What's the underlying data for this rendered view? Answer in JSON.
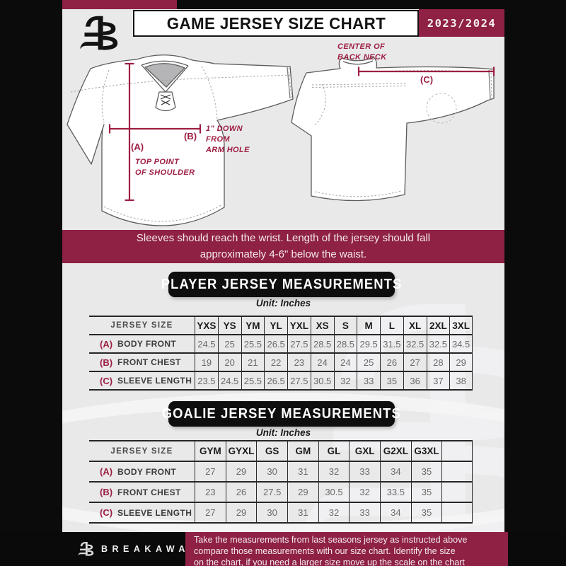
{
  "header": {
    "title": "GAME JERSEY SIZE CHART",
    "season": "2023/2024"
  },
  "diagram": {
    "front": {
      "a_key": "(A)",
      "a_note": "TOP POINT\nOF SHOULDER",
      "b_key": "(B)",
      "b_note": "1\" DOWN\nFROM\nARM HOLE"
    },
    "back": {
      "c_key": "(C)",
      "c_note": "CENTER OF\nBACK NECK"
    }
  },
  "fit_note": "Sleeves should reach the wrist. Length of the jersey should fall\napproximately 4-6\" below the waist.",
  "player_table": {
    "title": "PLAYER JERSEY MEASUREMENTS",
    "unit": "Unit: Inches",
    "size_header": "JERSEY SIZE",
    "columns": [
      "YXS",
      "YS",
      "YM",
      "YL",
      "YXL",
      "XS",
      "S",
      "M",
      "L",
      "XL",
      "2XL",
      "3XL"
    ],
    "rows": [
      {
        "key": "(A)",
        "label": "BODY FRONT",
        "values": [
          "24.5",
          "25",
          "25.5",
          "26.5",
          "27.5",
          "28.5",
          "28.5",
          "29.5",
          "31.5",
          "32.5",
          "32.5",
          "34.5"
        ]
      },
      {
        "key": "(B)",
        "label": "FRONT CHEST",
        "values": [
          "19",
          "20",
          "21",
          "22",
          "23",
          "24",
          "24",
          "25",
          "26",
          "27",
          "28",
          "29"
        ]
      },
      {
        "key": "(C)",
        "label": "SLEEVE LENGTH",
        "values": [
          "23.5",
          "24.5",
          "25.5",
          "26.5",
          "27.5",
          "30.5",
          "32",
          "33",
          "35",
          "36",
          "37",
          "38"
        ]
      }
    ]
  },
  "goalie_table": {
    "title": "GOALIE JERSEY MEASUREMENTS",
    "unit": "Unit: Inches",
    "size_header": "JERSEY SIZE",
    "columns": [
      "GYM",
      "GYXL",
      "GS",
      "GM",
      "GL",
      "GXL",
      "G2XL",
      "G3XL",
      ""
    ],
    "rows": [
      {
        "key": "(A)",
        "label": "BODY FRONT",
        "values": [
          "27",
          "29",
          "30",
          "31",
          "32",
          "33",
          "34",
          "35",
          ""
        ]
      },
      {
        "key": "(B)",
        "label": "FRONT CHEST",
        "values": [
          "23",
          "26",
          "27.5",
          "29",
          "30.5",
          "32",
          "33.5",
          "35",
          ""
        ]
      },
      {
        "key": "(C)",
        "label": "SLEEVE LENGTH",
        "values": [
          "27",
          "29",
          "30",
          "31",
          "32",
          "33",
          "34",
          "35",
          ""
        ]
      }
    ]
  },
  "footer": {
    "brand": "BREAKAWAY",
    "note": "Take the measurements from last seasons jersey as instructed above\ncompare those measurements  with our size chart. Identify the size\non the chart, if you need a larger size move up the scale on the chart"
  },
  "colors": {
    "maroon": "#8E2144",
    "accent_text": "#9E1E42",
    "page": "#E9E9EA",
    "frame": "#0B0B0C"
  }
}
